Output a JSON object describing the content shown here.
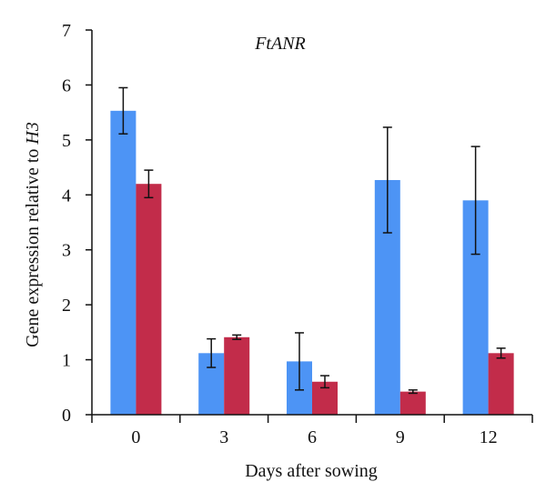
{
  "chart_data": {
    "type": "bar",
    "title": "FtANR",
    "xlabel": "Days after sowing",
    "ylabel": "Gene expression relative to ",
    "ylabel_italic": "H3",
    "categories": [
      "0",
      "3",
      "6",
      "9",
      "12"
    ],
    "ylim": [
      0,
      7
    ],
    "yticks": [
      "0",
      "1",
      "2",
      "3",
      "4",
      "5",
      "6",
      "7"
    ],
    "grid": false,
    "legend": "none",
    "series": [
      {
        "color": "#4d94f5",
        "values": [
          5.53,
          1.12,
          0.97,
          4.27,
          3.9
        ],
        "error": [
          0.42,
          0.26,
          0.52,
          0.96,
          0.98
        ]
      },
      {
        "color": "#c22c4a",
        "values": [
          4.2,
          1.41,
          0.6,
          0.42,
          1.12
        ],
        "error": [
          0.25,
          0.04,
          0.11,
          0.03,
          0.09
        ]
      }
    ]
  }
}
